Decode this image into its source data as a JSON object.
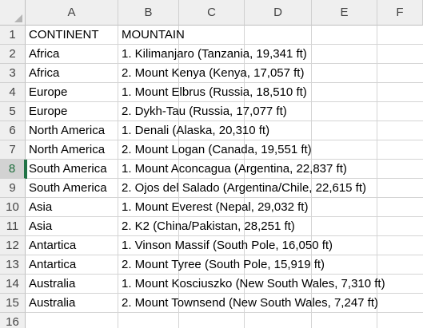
{
  "spreadsheet": {
    "columns": [
      "A",
      "B",
      "C",
      "D",
      "E",
      "F"
    ],
    "rows": [
      {
        "num": "1",
        "a": "CONTINENT",
        "b": "MOUNTAIN"
      },
      {
        "num": "2",
        "a": "Africa",
        "b": "1. Kilimanjaro (Tanzania, 19,341 ft)"
      },
      {
        "num": "3",
        "a": "Africa",
        "b": "2. Mount Kenya (Kenya, 17,057 ft)"
      },
      {
        "num": "4",
        "a": "Europe",
        "b": "1. Mount Elbrus (Russia, 18,510 ft)"
      },
      {
        "num": "5",
        "a": "Europe",
        "b": "2. Dykh-Tau (Russia, 17,077 ft)"
      },
      {
        "num": "6",
        "a": "North America",
        "b": "1. Denali (Alaska, 20,310 ft)"
      },
      {
        "num": "7",
        "a": "North America",
        "b": "2. Mount Logan (Canada, 19,551 ft)"
      },
      {
        "num": "8",
        "a": "South America",
        "b": "1. Mount Aconcagua (Argentina, 22,837 ft)"
      },
      {
        "num": "9",
        "a": "South America",
        "b": "2. Ojos del Salado (Argentina/Chile, 22,615 ft)"
      },
      {
        "num": "10",
        "a": "Asia",
        "b": "1. Mount Everest (Nepal, 29,032 ft)"
      },
      {
        "num": "11",
        "a": "Asia",
        "b": "2. K2 (China/Pakistan, 28,251 ft)"
      },
      {
        "num": "12",
        "a": "Antartica",
        "b": "1. Vinson Massif (South Pole, 16,050 ft)"
      },
      {
        "num": "13",
        "a": "Antartica",
        "b": "2. Mount Tyree (South Pole, 15,919 ft)"
      },
      {
        "num": "14",
        "a": "Australia",
        "b": "1. Mount Kosciuszko (New South Wales, 7,310 ft)"
      },
      {
        "num": "15",
        "a": "Australia",
        "b": "2. Mount Townsend (New South Wales, 7,247 ft)"
      },
      {
        "num": "16",
        "a": "",
        "b": ""
      }
    ],
    "active_row": "8",
    "colors": {
      "header_bg": "#efefef",
      "active_header_bg": "#d2d2d2",
      "selection_accent": "#217346",
      "gridline": "#d4d4d4"
    }
  }
}
